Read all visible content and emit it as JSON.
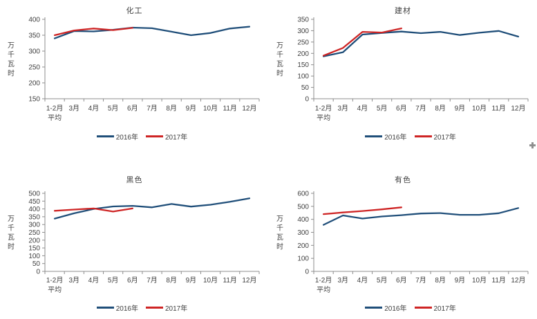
{
  "window": {
    "background": "#ffffff"
  },
  "axis_color": "#8c8c8c",
  "text_color": "#3f3f3f",
  "cursor": {
    "glyph": "plus",
    "color": "#8f8f8f"
  },
  "chart_data": [
    {
      "type": "line",
      "title": "化工",
      "ylabel": "万千瓦时",
      "xlabel": "",
      "categories": [
        [
          "1-2月",
          "平均"
        ],
        [
          "3月"
        ],
        [
          "4月"
        ],
        [
          "5月"
        ],
        [
          "6月"
        ],
        [
          "7月"
        ],
        [
          "8月"
        ],
        [
          "9月"
        ],
        [
          "10月"
        ],
        [
          "11月"
        ],
        [
          "12月"
        ]
      ],
      "ylim": [
        150,
        400
      ],
      "ytick_step": 50,
      "grid": false,
      "legend_position": "bottom",
      "series": [
        {
          "name": "2016年",
          "color": "#1f4e79",
          "values": [
            340,
            363,
            362,
            367,
            374,
            372,
            361,
            350,
            357,
            371,
            377
          ]
        },
        {
          "name": "2017年",
          "color": "#ce2424",
          "values": [
            350,
            365,
            371,
            366,
            373,
            null,
            null,
            null,
            null,
            null,
            null
          ]
        }
      ]
    },
    {
      "type": "line",
      "title": "建材",
      "ylabel": "万千瓦时",
      "xlabel": "",
      "categories": [
        [
          "1-2月",
          "平均"
        ],
        [
          "3月"
        ],
        [
          "4月"
        ],
        [
          "5月"
        ],
        [
          "6月"
        ],
        [
          "7月"
        ],
        [
          "8月"
        ],
        [
          "9月"
        ],
        [
          "10月"
        ],
        [
          "11月"
        ],
        [
          "12月"
        ]
      ],
      "ylim": [
        0,
        350
      ],
      "ytick_step": 50,
      "grid": false,
      "legend_position": "bottom",
      "series": [
        {
          "name": "2016年",
          "color": "#1f4e79",
          "values": [
            187,
            205,
            283,
            290,
            296,
            289,
            295,
            281,
            291,
            299,
            274
          ]
        },
        {
          "name": "2017年",
          "color": "#ce2424",
          "values": [
            190,
            224,
            295,
            292,
            310,
            null,
            null,
            null,
            null,
            null,
            null
          ]
        }
      ]
    },
    {
      "type": "line",
      "title": "黑色",
      "ylabel": "万千瓦时",
      "xlabel": "",
      "categories": [
        [
          "1-2月",
          "平均"
        ],
        [
          "3月"
        ],
        [
          "4月"
        ],
        [
          "5月"
        ],
        [
          "6月"
        ],
        [
          "7月"
        ],
        [
          "8月"
        ],
        [
          "9月"
        ],
        [
          "10月"
        ],
        [
          "11月"
        ],
        [
          "12月"
        ]
      ],
      "ylim": [
        0,
        500
      ],
      "ytick_step": 50,
      "grid": false,
      "legend_position": "bottom",
      "series": [
        {
          "name": "2016年",
          "color": "#1f4e79",
          "values": [
            338,
            372,
            400,
            416,
            420,
            410,
            432,
            415,
            427,
            446,
            468
          ]
        },
        {
          "name": "2017年",
          "color": "#ce2424",
          "values": [
            388,
            396,
            403,
            383,
            403,
            null,
            null,
            null,
            null,
            null,
            null
          ]
        }
      ]
    },
    {
      "type": "line",
      "title": "有色",
      "ylabel": "万千瓦时",
      "xlabel": "",
      "categories": [
        [
          "1-2月",
          "平均"
        ],
        [
          "3月"
        ],
        [
          "4月"
        ],
        [
          "5月"
        ],
        [
          "6月"
        ],
        [
          "7月"
        ],
        [
          "8月"
        ],
        [
          "9月"
        ],
        [
          "10月"
        ],
        [
          "11月"
        ],
        [
          "12月"
        ]
      ],
      "ylim": [
        0,
        600
      ],
      "ytick_step": 100,
      "grid": false,
      "legend_position": "bottom",
      "series": [
        {
          "name": "2016年",
          "color": "#1f4e79",
          "values": [
            358,
            430,
            406,
            422,
            432,
            445,
            448,
            435,
            435,
            447,
            487
          ]
        },
        {
          "name": "2017年",
          "color": "#ce2424",
          "values": [
            440,
            453,
            464,
            477,
            492,
            null,
            null,
            null,
            null,
            null,
            null
          ]
        }
      ]
    }
  ]
}
